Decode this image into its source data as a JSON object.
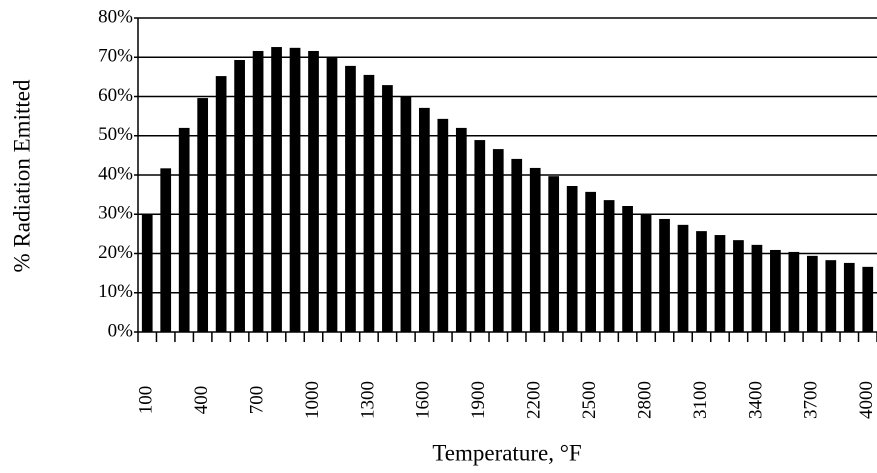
{
  "chart_data": {
    "type": "bar",
    "x_label": "Temperature, °F",
    "y_label": "% Radiation Emitted",
    "categories": [
      "100",
      null,
      null,
      "400",
      null,
      null,
      "700",
      null,
      null,
      "1000",
      null,
      null,
      "1300",
      null,
      null,
      "1600",
      null,
      null,
      "1900",
      null,
      null,
      "2200",
      null,
      null,
      "2500",
      null,
      null,
      "2800",
      null,
      null,
      "3100",
      null,
      null,
      "3400",
      null,
      null,
      "3700",
      null,
      null,
      "4000"
    ],
    "values": [
      30,
      41.7,
      52,
      59.6,
      65.2,
      69.3,
      71.6,
      72.6,
      72.4,
      71.6,
      69.8,
      67.8,
      65.5,
      62.9,
      60.1,
      57.1,
      54.3,
      52,
      48.9,
      46.6,
      44.1,
      41.8,
      39.7,
      37.2,
      35.7,
      33.6,
      32.1,
      30.1,
      28.8,
      27.3,
      25.7,
      24.7,
      23.4,
      22.2,
      20.9,
      20.4,
      19.4,
      18.3,
      17.6,
      16.6
    ],
    "color": "#000000",
    "ylim": [
      0,
      80
    ],
    "yticks": [
      {
        "value": 0,
        "label": "0%"
      },
      {
        "value": 10,
        "label": "10%"
      },
      {
        "value": 20,
        "label": "20%"
      },
      {
        "value": 30,
        "label": "30%"
      },
      {
        "value": 40,
        "label": "40%"
      },
      {
        "value": 50,
        "label": "50%"
      },
      {
        "value": 60,
        "label": "60%"
      },
      {
        "value": 70,
        "label": "70%"
      },
      {
        "value": 80,
        "label": "80%"
      }
    ],
    "grid": true
  }
}
